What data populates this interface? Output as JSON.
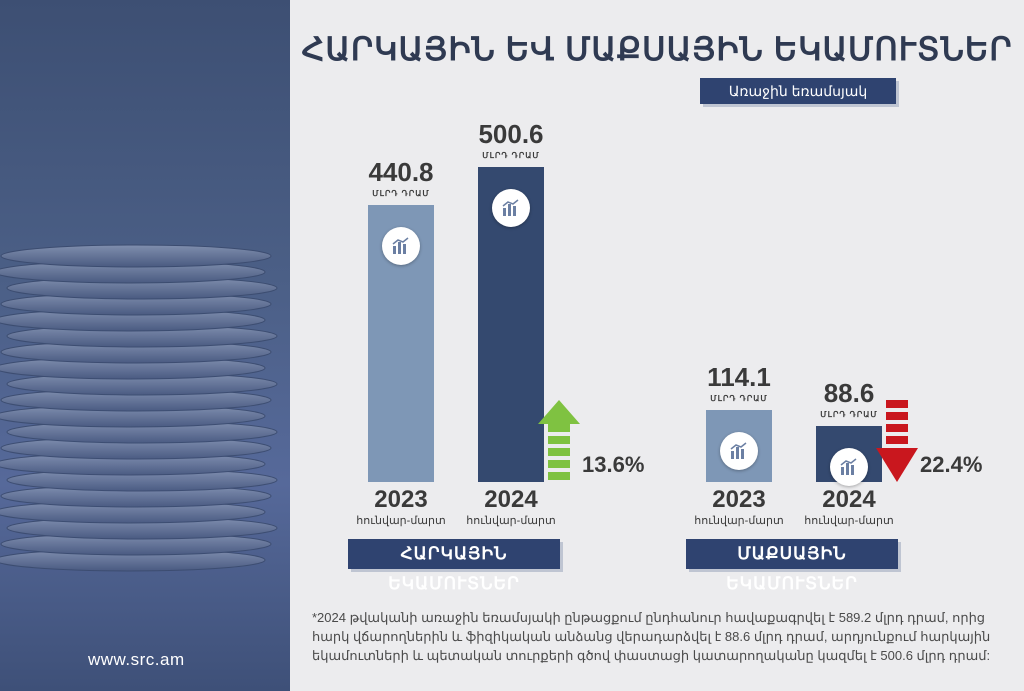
{
  "title": "ՀԱՐԿԱՅԻՆ ԵՎ ՄԱՔՍԱՅԻՆ ԵԿԱՄՈՒՏՆԵՐ",
  "subtitle": "Առաջին եռամսյակ",
  "website": "www.src.am",
  "footnote": "*2024 թվականի առաջին եռամսյակի ընթացքում ընդհանուր հավաքագրվել է 589.2 մլրդ դրամ, որից հարկ վճարողներին և ֆիզիկական անձանց վերադարձվել է 88.6 մլրդ դրամ, արդյունքում հարկային եկամուտների և պետական տուրքերի գծով փաստացի կատարողականը կազմել է 500.6 մլրդ դրամ:",
  "colors": {
    "bar_2023": "#7e97b6",
    "bar_2024": "#34496f",
    "up_arrow": "#7fc241",
    "down_arrow": "#c9171e",
    "badge": "#2f4370"
  },
  "chart_data": [
    {
      "type": "bar",
      "category_label": "ՀԱՐԿԱՅԻՆ ԵԿԱՄՈՒՏՆԵՐ",
      "unit": "ՄԼՐԴ ԴՐԱՄ",
      "period": "հունվար-մարտ",
      "categories": [
        "2023",
        "2024"
      ],
      "values": [
        440.8,
        500.6
      ],
      "change": "13.6%",
      "change_direction": "up",
      "icon": "bar-chart-icon"
    },
    {
      "type": "bar",
      "category_label": "ՄԱՔՍԱՅԻՆ ԵԿԱՄՈՒՏՆԵՐ",
      "unit": "ՄԼՐԴ ԴՐԱՄ",
      "period": "հունվար-մարտ",
      "categories": [
        "2023",
        "2024"
      ],
      "values": [
        114.1,
        88.6
      ],
      "change": "22.4%",
      "change_direction": "down",
      "icon": "bar-chart-icon"
    }
  ]
}
